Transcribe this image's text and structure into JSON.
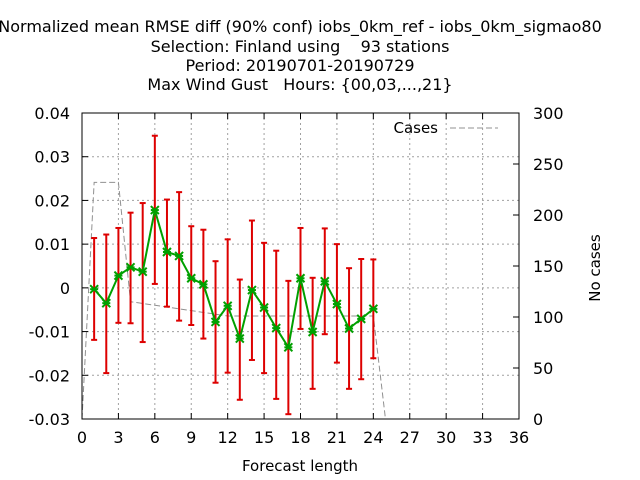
{
  "chart_data": {
    "type": "line",
    "title_lines": [
      "Normalized mean RMSE diff (90% conf) iobs_0km_ref - iobs_0km_sigmao80",
      "Selection: Finland using    93 stations",
      "Period: 20190701-20190729",
      "Max Wind Gust   Hours: {00,03,...,21}"
    ],
    "xlabel": "Forecast length",
    "ylabel_right": "No cases",
    "xlim": [
      0,
      36
    ],
    "ylim": [
      -0.03,
      0.04
    ],
    "y2lim": [
      0,
      300
    ],
    "x_ticks": [
      0,
      3,
      6,
      9,
      12,
      15,
      18,
      21,
      24,
      27,
      30,
      33,
      36
    ],
    "y_ticks": [
      -0.03,
      -0.02,
      -0.01,
      0,
      0.01,
      0.02,
      0.03,
      0.04
    ],
    "y_tick_labels": [
      "-0.03",
      "-0.02",
      "-0.01",
      "0",
      "0.01",
      "0.02",
      "0.03",
      "0.04"
    ],
    "y2_ticks": [
      0,
      50,
      100,
      150,
      200,
      250,
      300
    ],
    "grid": true,
    "legend": {
      "label": "Cases",
      "position": "top-right"
    },
    "colors": {
      "line": "#00a000",
      "error_bar": "#dd0000",
      "cases": "#909090",
      "grid": "#a0a0a0"
    },
    "mean_series": {
      "x": [
        1,
        2,
        3,
        4,
        5,
        6,
        7,
        8,
        9,
        10,
        11,
        12,
        13,
        14,
        15,
        16,
        17,
        18,
        19,
        20,
        21,
        22,
        23,
        24
      ],
      "y": [
        -0.0003,
        -0.0035,
        0.0028,
        0.0047,
        0.0037,
        0.0178,
        0.0082,
        0.0073,
        0.0022,
        0.0008,
        -0.0078,
        -0.0041,
        -0.0116,
        -0.0005,
        -0.0045,
        -0.0092,
        -0.0136,
        0.0022,
        -0.0101,
        0.0015,
        -0.0037,
        -0.0093,
        -0.0071,
        -0.0048
      ],
      "lower": [
        -0.0119,
        -0.0195,
        -0.008,
        -0.0081,
        -0.0124,
        0.0009,
        -0.0043,
        -0.0075,
        -0.0085,
        -0.0116,
        -0.0217,
        -0.0194,
        -0.0256,
        -0.0165,
        -0.0195,
        -0.0254,
        -0.0289,
        -0.0094,
        -0.0231,
        -0.0106,
        -0.0171,
        -0.0231,
        -0.0209,
        -0.0161
      ],
      "upper": [
        0.0114,
        0.0122,
        0.0137,
        0.0172,
        0.0194,
        0.0348,
        0.0202,
        0.0219,
        0.0141,
        0.0133,
        0.0061,
        0.0111,
        0.0019,
        0.0154,
        0.0103,
        0.0085,
        0.0016,
        0.0137,
        0.0023,
        0.0136,
        0.01,
        0.0045,
        0.0066,
        0.0065
      ]
    },
    "cases_series": {
      "x": [
        0,
        0.5,
        1,
        3,
        4,
        12,
        24,
        25,
        36
      ],
      "y": [
        0,
        116,
        232,
        232,
        115,
        101,
        101,
        0,
        0
      ]
    }
  }
}
